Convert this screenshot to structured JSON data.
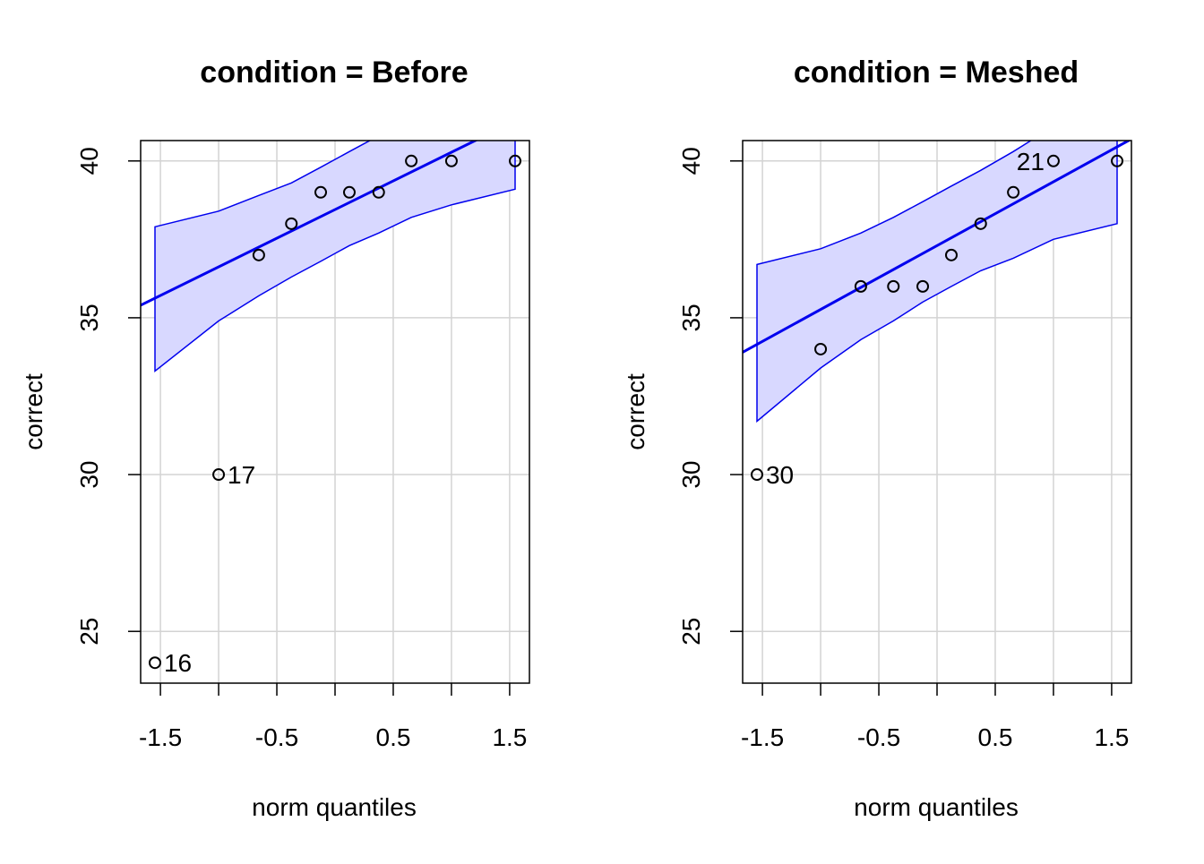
{
  "chart_data": [
    {
      "type": "scatter",
      "title": "condition = Before",
      "xlabel": "norm quantiles",
      "ylabel": "correct",
      "xlim": [
        -1.67,
        1.67
      ],
      "ylim": [
        23.35,
        40.65
      ],
      "xticks": [
        -1.5,
        -1.0,
        -0.5,
        0.0,
        0.5,
        1.0,
        1.5
      ],
      "xtick_labels": [
        "-1.5",
        "",
        "-0.5",
        "",
        "0.5",
        "",
        "1.5"
      ],
      "yticks": [
        25,
        30,
        35,
        40
      ],
      "ytick_labels": [
        "25",
        "30",
        "35",
        "40"
      ],
      "grid": true,
      "points": [
        {
          "x": -1.547,
          "y": 24,
          "label": "16"
        },
        {
          "x": -1.0,
          "y": 30,
          "label": "17"
        },
        {
          "x": -0.655,
          "y": 37
        },
        {
          "x": -0.375,
          "y": 38
        },
        {
          "x": -0.123,
          "y": 39
        },
        {
          "x": 0.123,
          "y": 39
        },
        {
          "x": 0.375,
          "y": 39
        },
        {
          "x": 0.655,
          "y": 40
        },
        {
          "x": 1.0,
          "y": 40
        },
        {
          "x": 1.547,
          "y": 40
        }
      ],
      "reference_line": {
        "x": [
          -1.67,
          1.67
        ],
        "y": [
          35.4,
          41.5
        ]
      },
      "envelope": {
        "x": [
          -1.547,
          -1.0,
          -0.655,
          -0.375,
          -0.123,
          0.123,
          0.375,
          0.655,
          1.0,
          1.547
        ],
        "lower": [
          33.3,
          34.9,
          35.7,
          36.3,
          36.8,
          37.3,
          37.7,
          38.2,
          38.6,
          39.1
        ],
        "upper": [
          37.9,
          38.4,
          38.9,
          39.3,
          39.8,
          40.3,
          40.8,
          41.4,
          41.9,
          42.5
        ]
      },
      "colors": {
        "line": "#0000ee",
        "envelope_fill": "#d8d8ff",
        "points": "#000000",
        "grid": "#d3d3d3"
      }
    },
    {
      "type": "scatter",
      "title": "condition = Meshed",
      "xlabel": "norm quantiles",
      "ylabel": "correct",
      "xlim": [
        -1.67,
        1.67
      ],
      "ylim": [
        23.35,
        40.65
      ],
      "xticks": [
        -1.5,
        -1.0,
        -0.5,
        0.0,
        0.5,
        1.0,
        1.5
      ],
      "xtick_labels": [
        "-1.5",
        "",
        "-0.5",
        "",
        "0.5",
        "",
        "1.5"
      ],
      "yticks": [
        25,
        30,
        35,
        40
      ],
      "ytick_labels": [
        "25",
        "30",
        "35",
        "40"
      ],
      "grid": true,
      "points": [
        {
          "x": -1.547,
          "y": 30,
          "label": "30"
        },
        {
          "x": -1.0,
          "y": 34
        },
        {
          "x": -0.655,
          "y": 36
        },
        {
          "x": -0.375,
          "y": 36
        },
        {
          "x": -0.123,
          "y": 36
        },
        {
          "x": 0.123,
          "y": 37
        },
        {
          "x": 0.375,
          "y": 38
        },
        {
          "x": 0.655,
          "y": 39
        },
        {
          "x": 1.0,
          "y": 40,
          "label": "21"
        },
        {
          "x": 1.547,
          "y": 40
        }
      ],
      "reference_line": {
        "x": [
          -1.67,
          1.67
        ],
        "y": [
          33.9,
          40.7
        ]
      },
      "envelope": {
        "x": [
          -1.547,
          -1.0,
          -0.655,
          -0.375,
          -0.123,
          0.123,
          0.375,
          0.655,
          1.0,
          1.547
        ],
        "lower": [
          31.7,
          33.4,
          34.3,
          34.9,
          35.5,
          36.0,
          36.5,
          36.9,
          37.5,
          38.0
        ],
        "upper": [
          36.7,
          37.2,
          37.7,
          38.2,
          38.7,
          39.2,
          39.7,
          40.3,
          41.1,
          42.5
        ]
      },
      "colors": {
        "line": "#0000ee",
        "envelope_fill": "#d8d8ff",
        "points": "#000000",
        "grid": "#d3d3d3"
      }
    }
  ]
}
